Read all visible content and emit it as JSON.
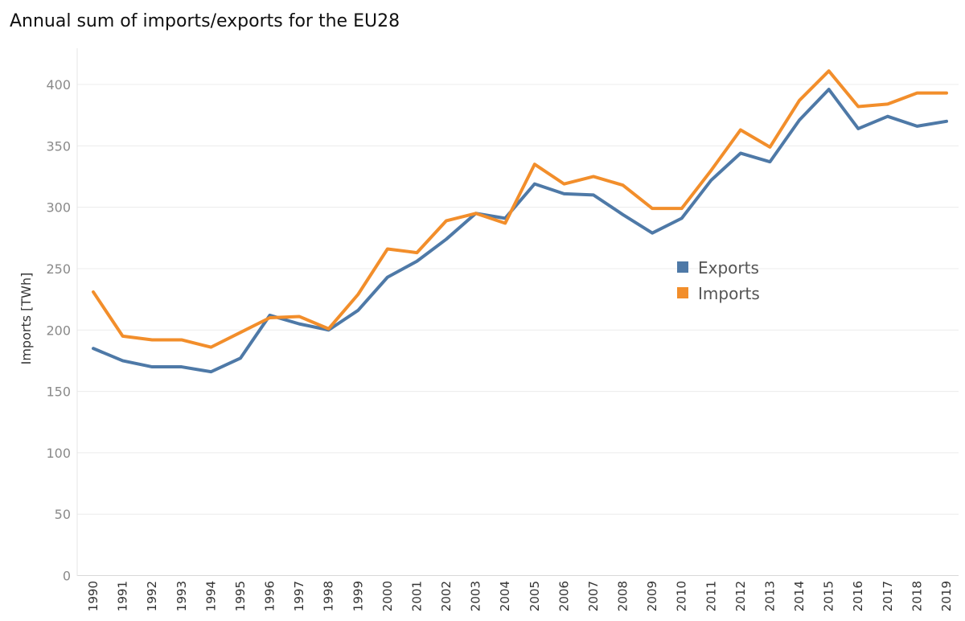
{
  "chart_data": {
    "type": "line",
    "title": "Annual sum of imports/exports for the EU28",
    "xlabel": "",
    "ylabel": "Imports [TWh]",
    "ylim": [
      0,
      430
    ],
    "yticks": [
      0,
      50,
      100,
      150,
      200,
      250,
      300,
      350,
      400
    ],
    "grid": true,
    "legend_position": "center-right",
    "x": [
      "1990",
      "1991",
      "1992",
      "1993",
      "1994",
      "1995",
      "1996",
      "1997",
      "1998",
      "1999",
      "2000",
      "2001",
      "2002",
      "2003",
      "2004",
      "2005",
      "2006",
      "2007",
      "2008",
      "2009",
      "2010",
      "2011",
      "2012",
      "2013",
      "2014",
      "2015",
      "2016",
      "2017",
      "2018",
      "2019"
    ],
    "series": [
      {
        "name": "Exports",
        "color": "#4e79a7",
        "values": [
          185,
          175,
          170,
          170,
          166,
          177,
          212,
          205,
          200,
          216,
          243,
          256,
          274,
          295,
          291,
          319,
          311,
          310,
          294,
          279,
          291,
          322,
          344,
          337,
          371,
          396,
          364,
          374,
          366,
          370
        ]
      },
      {
        "name": "Imports",
        "color": "#f28e2b",
        "values": [
          231,
          195,
          192,
          192,
          186,
          198,
          210,
          211,
          201,
          229,
          266,
          263,
          289,
          295,
          287,
          335,
          319,
          325,
          318,
          299,
          299,
          330,
          363,
          349,
          387,
          411,
          382,
          384,
          393,
          393
        ]
      }
    ]
  }
}
